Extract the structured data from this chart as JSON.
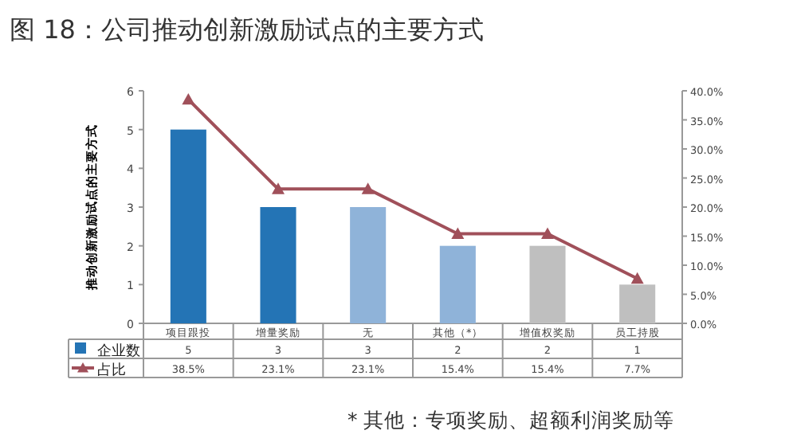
{
  "chart_data": {
    "type": "bar",
    "title": "图 18：公司推动创新激励试点的主要方式",
    "ylabel": "推动创新激励试点的主要方式",
    "categories": [
      "项目跟投",
      "增量奖励",
      "无",
      "其他（*）",
      "增值权奖励",
      "员工持股"
    ],
    "series": [
      {
        "name": "企业数",
        "color": "#2474b5",
        "colors": [
          "#2474b5",
          "#2474b5",
          "#8fb3d9",
          "#8fb3d9",
          "#bfbfbf",
          "#bfbfbf"
        ],
        "values": [
          5,
          3,
          3,
          2,
          2,
          1
        ],
        "value_labels": [
          "5",
          "3",
          "3",
          "2",
          "2",
          "1"
        ]
      },
      {
        "name": "占比",
        "type": "line",
        "axis": "y2",
        "color": "#a0505a",
        "marker": "triangle",
        "values": [
          38.5,
          23.1,
          23.1,
          15.4,
          15.4,
          7.7
        ],
        "value_labels": [
          "38.5%",
          "23.1%",
          "23.1%",
          "15.4%",
          "15.4%",
          "7.7%"
        ]
      }
    ],
    "ylim": [
      0,
      6
    ],
    "yticks": [
      0,
      1,
      2,
      3,
      4,
      5,
      6
    ],
    "y2lim": [
      0,
      40
    ],
    "y2ticks": [
      {
        "value": 0,
        "label": "0.0%"
      },
      {
        "value": 5,
        "label": "5.0%"
      },
      {
        "value": 10,
        "label": "10.0%"
      },
      {
        "value": 15,
        "label": "15.0%"
      },
      {
        "value": 20,
        "label": "20.0%"
      },
      {
        "value": 25,
        "label": "25.0%"
      },
      {
        "value": 30,
        "label": "30.0%"
      },
      {
        "value": 35,
        "label": "35.0%"
      },
      {
        "value": 40,
        "label": "40.0%"
      }
    ],
    "legend": "bottom",
    "annotations": [
      "* 其他：专项奖励、超额利润奖励等"
    ]
  }
}
